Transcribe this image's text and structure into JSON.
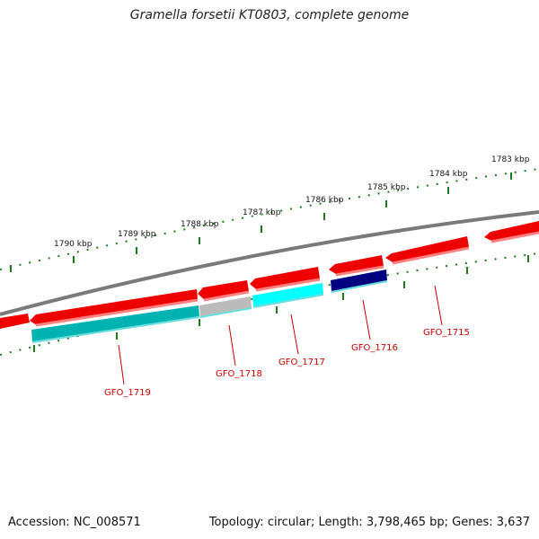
{
  "title": "Gramella forsetii KT0803, complete genome",
  "footer": {
    "accession_label": "Accession:",
    "accession": "NC_008571",
    "topology_label": "Topology:",
    "topology": "circular",
    "length_label": "Length:",
    "length": "3,798,465 bp",
    "genes_label": "Genes:",
    "genes": "3,637"
  },
  "colors": {
    "backbone": "#7a7a7a",
    "forward_gene": "#ee0000",
    "tick": "#1d7a1d",
    "label": "#cc0000",
    "cyan": "#00ffff",
    "teal": "#00b3b3",
    "grey": "#bbbbbb",
    "navy": "#000080"
  },
  "scale_ticks": [
    {
      "label": "1790 kbp"
    },
    {
      "label": "1789 kbp"
    },
    {
      "label": "1788 kbp"
    },
    {
      "label": "1787 kbp"
    },
    {
      "label": "1786 kbp"
    },
    {
      "label": "1785 kbp"
    },
    {
      "label": "1784 kbp"
    },
    {
      "label": "1783 kbp"
    }
  ],
  "gene_labels": [
    {
      "label": "GFO_1719",
      "color": "teal"
    },
    {
      "label": "GFO_1718",
      "color": "grey"
    },
    {
      "label": "GFO_1717",
      "color": "cyan"
    },
    {
      "label": "GFO_1716",
      "color": "navy"
    },
    {
      "label": "GFO_1715",
      "color": "forward_gene"
    }
  ]
}
